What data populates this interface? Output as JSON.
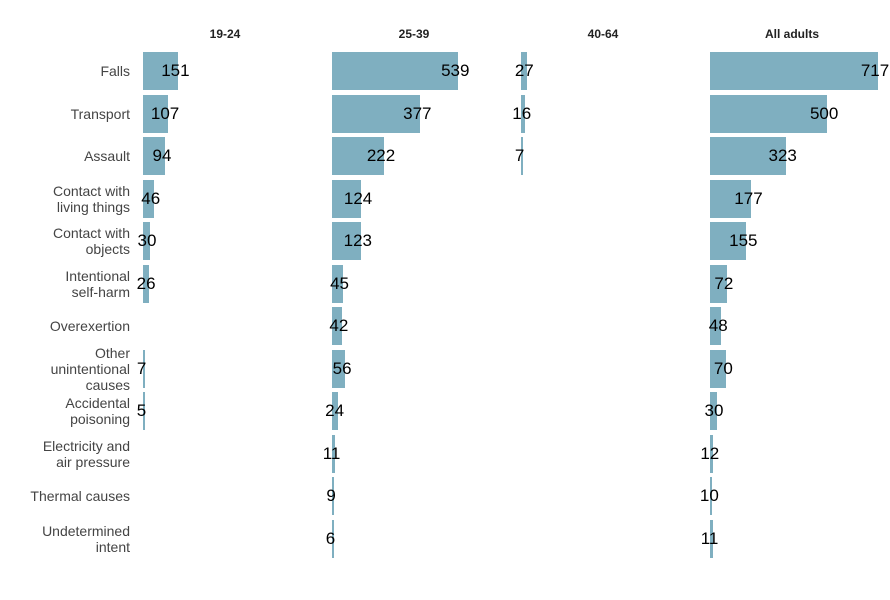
{
  "chart_data": {
    "type": "bar",
    "orientation": "horizontal",
    "layout": "facet",
    "categories": [
      "Falls",
      "Transport",
      "Assault",
      "Contact with\nliving things",
      "Contact with\nobjects",
      "Intentional\nself-harm",
      "Overexertion",
      "Other\nunintentional\ncauses",
      "Accidental\npoisoning",
      "Electricity and\nair pressure",
      "Thermal causes",
      "Undetermined\nintent"
    ],
    "series": [
      {
        "name": "19-24",
        "color": "#7fafc0",
        "values": [
          151,
          107,
          94,
          46,
          30,
          26,
          null,
          7,
          5,
          null,
          null,
          null
        ]
      },
      {
        "name": "25-39",
        "color": "#7fafc0",
        "values": [
          539,
          377,
          222,
          124,
          123,
          45,
          42,
          56,
          24,
          11,
          9,
          6
        ]
      },
      {
        "name": "40-64",
        "color": "#7fafc0",
        "values": [
          27,
          16,
          7,
          null,
          null,
          null,
          null,
          null,
          null,
          null,
          null,
          null
        ]
      },
      {
        "name": "All adults",
        "color": "#7fafc0",
        "values": [
          717,
          500,
          323,
          177,
          155,
          72,
          48,
          70,
          30,
          12,
          10,
          11
        ]
      }
    ]
  }
}
